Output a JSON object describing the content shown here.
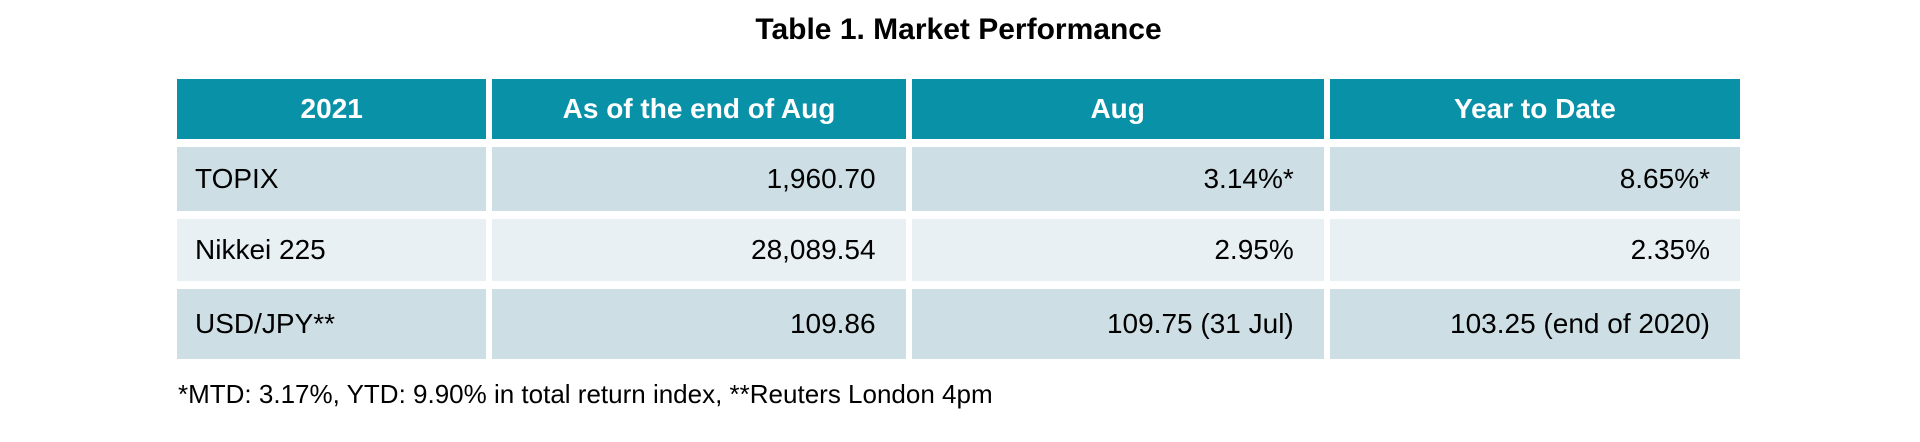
{
  "page": {
    "title": "Table 1. Market Performance",
    "footnote": "*MTD: 3.17%, YTD: 9.90% in total return index, **Reuters London 4pm"
  },
  "table": {
    "columns": [
      "2021",
      "As of the end of Aug",
      "Aug",
      "Year to Date"
    ],
    "rows": [
      {
        "label": "TOPIX",
        "end_of_aug": "1,960.70",
        "aug": "3.14%*",
        "ytd": "8.65%*"
      },
      {
        "label": "Nikkei 225",
        "end_of_aug": "28,089.54",
        "aug": "2.95%",
        "ytd": "2.35%"
      },
      {
        "label": "USD/JPY**",
        "end_of_aug": "109.86",
        "aug": "109.75 (31 Jul)",
        "ytd": "103.25 (end of 2020)"
      }
    ]
  },
  "colors": {
    "header_bg": "#0991A8",
    "row_odd_bg": "#CDDFE5",
    "row_even_bg": "#E8F0F3",
    "header_text": "#FFFFFF",
    "body_text": "#000000"
  }
}
